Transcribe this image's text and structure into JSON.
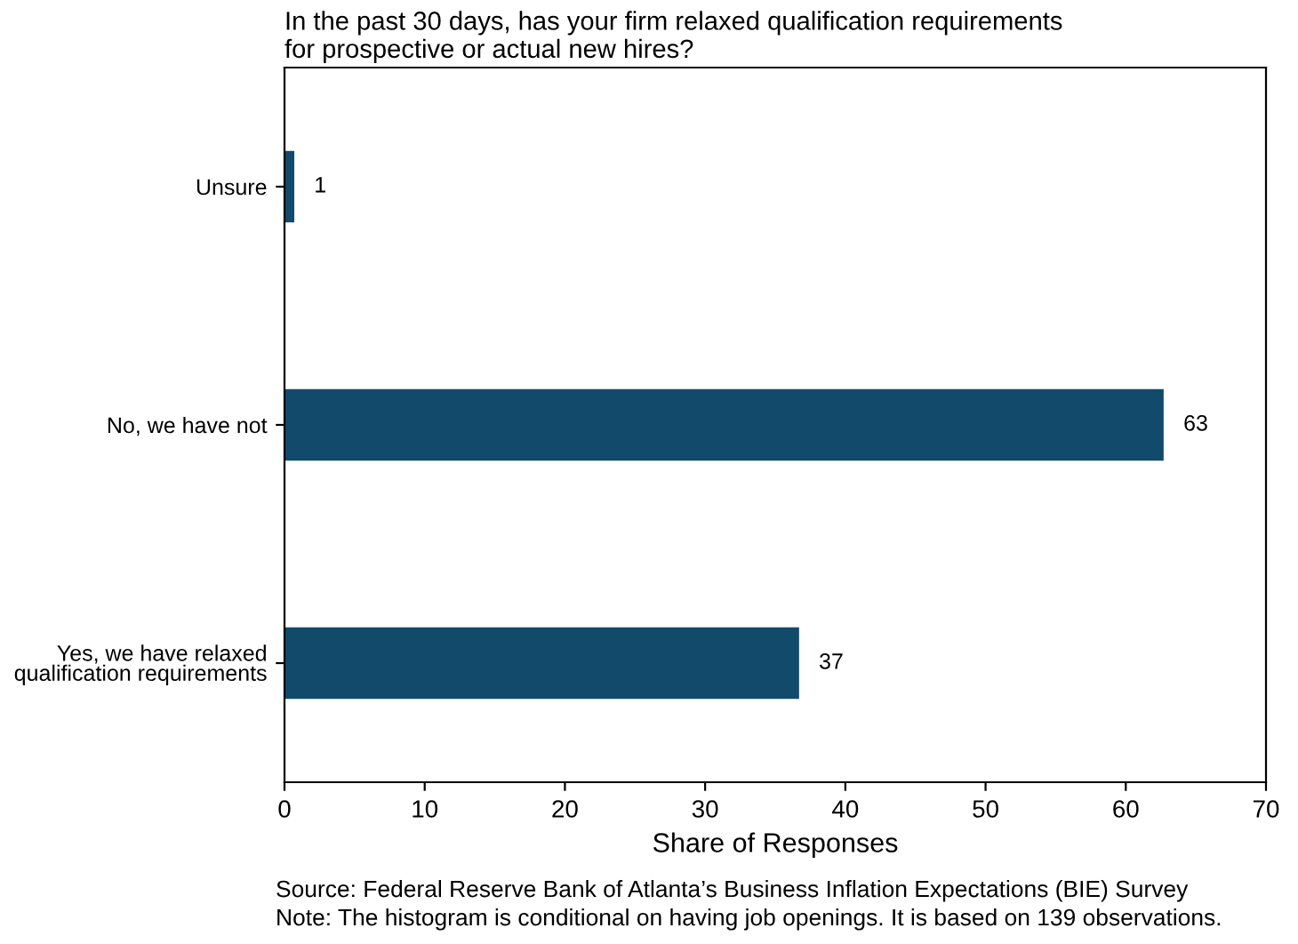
{
  "chart_data": {
    "type": "bar",
    "orientation": "horizontal",
    "title": "In the past 30 days, has your firm relaxed qualification requirements\nfor prospective or actual new hires?",
    "categories": [
      "Unsure",
      "No, we have not",
      "Yes, we have relaxed\nqualification requirements"
    ],
    "values": [
      0.7,
      62.7,
      36.7
    ],
    "value_labels": [
      "1",
      "63",
      "37"
    ],
    "color": "#114a6b",
    "xlim": [
      0,
      70
    ],
    "xticks": [
      0,
      10,
      20,
      30,
      40,
      50,
      60,
      70
    ],
    "xlabel": "Share of Responses",
    "grid": false,
    "legend": false,
    "annotations": [
      "Source: Federal Reserve Bank of Atlanta’s Business Inflation Expectations (BIE) Survey",
      "Note: The histogram is conditional on having job openings. It is based on 139 observations."
    ]
  }
}
